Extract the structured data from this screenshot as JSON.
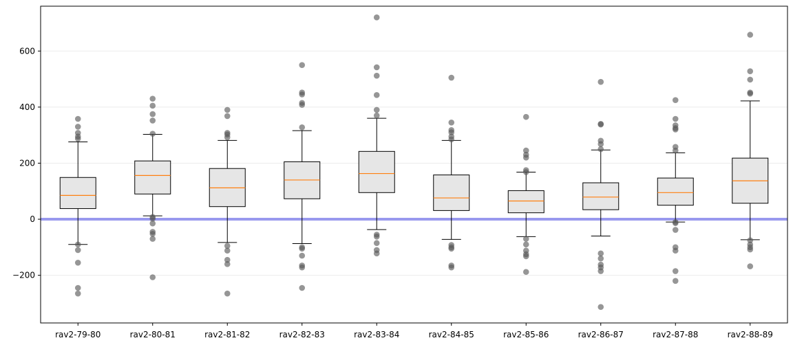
{
  "chart_data": {
    "type": "boxplot",
    "title": "",
    "xlabel": "",
    "ylabel": "",
    "ylim": [
      -370,
      760
    ],
    "yticks": [
      -200,
      0,
      200,
      400,
      600
    ],
    "grid": "horizontal",
    "reference_line": {
      "y": 0,
      "color": "#9999ee"
    },
    "colors": {
      "box_fill": "#e6e6e6",
      "median": "#ff7f0e",
      "outlier": "#555555",
      "grid": "#ebebeb"
    },
    "categories": [
      "rav2-79-80",
      "rav2-80-81",
      "rav2-81-82",
      "rav2-82-83",
      "rav2-83-84",
      "rav2-84-85",
      "rav2-85-86",
      "rav2-86-87",
      "rav2-87-88",
      "rav2-88-89"
    ],
    "boxes": [
      {
        "whislo": -90,
        "q1": 38,
        "median": 85,
        "q3": 149,
        "whishi": 276,
        "fliers": [
          358,
          330,
          308,
          295,
          287,
          -90,
          -110,
          -155,
          -245,
          -265
        ]
      },
      {
        "whislo": 12,
        "q1": 90,
        "median": 156,
        "q3": 208,
        "whishi": 303,
        "fliers": [
          430,
          405,
          375,
          352,
          305,
          8,
          2,
          -15,
          -45,
          -52,
          -70,
          -207
        ]
      },
      {
        "whislo": -83,
        "q1": 45,
        "median": 112,
        "q3": 181,
        "whishi": 281,
        "fliers": [
          390,
          368,
          308,
          302,
          292,
          -95,
          -112,
          -145,
          -160,
          -265
        ]
      },
      {
        "whislo": -87,
        "q1": 73,
        "median": 140,
        "q3": 205,
        "whishi": 316,
        "fliers": [
          550,
          452,
          445,
          415,
          408,
          328,
          -100,
          -105,
          -130,
          -165,
          -172,
          -245
        ]
      },
      {
        "whislo": -37,
        "q1": 95,
        "median": 163,
        "q3": 242,
        "whishi": 360,
        "fliers": [
          720,
          542,
          512,
          443,
          390,
          370,
          -55,
          -62,
          -85,
          -110,
          -122
        ]
      },
      {
        "whislo": -72,
        "q1": 31,
        "median": 76,
        "q3": 158,
        "whishi": 281,
        "fliers": [
          505,
          345,
          318,
          310,
          295,
          285,
          -92,
          -100,
          -105,
          -165,
          -172
        ]
      },
      {
        "whislo": -62,
        "q1": 23,
        "median": 65,
        "q3": 102,
        "whishi": 168,
        "fliers": [
          365,
          245,
          230,
          220,
          175,
          168,
          -70,
          -90,
          -112,
          -125,
          -132,
          -188
        ]
      },
      {
        "whislo": -60,
        "q1": 34,
        "median": 79,
        "q3": 130,
        "whishi": 247,
        "fliers": [
          490,
          340,
          338,
          280,
          268,
          250,
          -122,
          -140,
          -162,
          -172,
          -185,
          -313
        ]
      },
      {
        "whislo": -10,
        "q1": 50,
        "median": 95,
        "q3": 147,
        "whishi": 237,
        "fliers": [
          425,
          358,
          335,
          325,
          320,
          258,
          245,
          -10,
          -14,
          -38,
          -100,
          -112,
          -185,
          -220
        ]
      },
      {
        "whislo": -73,
        "q1": 57,
        "median": 137,
        "q3": 218,
        "whishi": 422,
        "fliers": [
          658,
          528,
          498,
          452,
          448,
          -75,
          -90,
          -100,
          -108,
          -168
        ]
      }
    ]
  }
}
